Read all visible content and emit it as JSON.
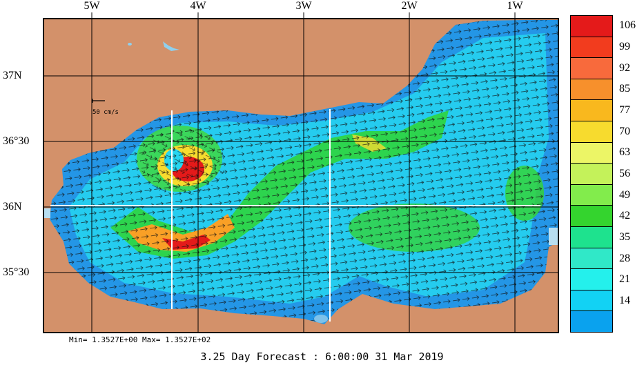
{
  "map": {
    "lon_labels": [
      "5W",
      "4W",
      "3W",
      "2W",
      "1W"
    ],
    "lat_labels": [
      "37N",
      "36°30",
      "36N",
      "35°30"
    ],
    "scale_label": "50 cm/s"
  },
  "colorbar": {
    "labels": [
      "106",
      "99",
      "92",
      "85",
      "77",
      "70",
      "63",
      "56",
      "49",
      "42",
      "35",
      "28",
      "21",
      "14"
    ],
    "colors": [
      "#e41a1a",
      "#f23c1e",
      "#f86a3c",
      "#f7902c",
      "#f9b81e",
      "#f7db2e",
      "#ecf566",
      "#c4f25a",
      "#82ec4c",
      "#34d42e",
      "#1ee28e",
      "#30e8c8",
      "#24f0ec",
      "#12d2f4",
      "#0aa2ee"
    ]
  },
  "footer": {
    "minmax": "Min= 1.3527E+00   Max= 1.3527E+02",
    "forecast": "3.25 Day Forecast :  6:00:00  31 Mar 2019"
  }
}
